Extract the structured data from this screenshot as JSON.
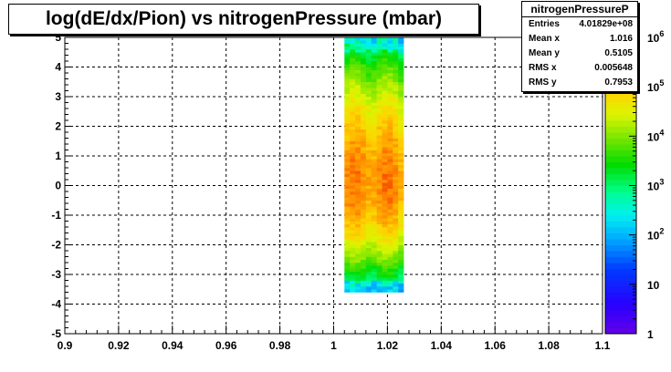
{
  "chart_data": {
    "type": "heatmap",
    "title": "log(dE/dx/Pion) vs nitrogenPressure (mbar)",
    "xlabel": "",
    "ylabel": "",
    "xlim": [
      0.9,
      1.1
    ],
    "ylim": [
      -5,
      5
    ],
    "x_ticks": [
      "0.9",
      "0.92",
      "0.94",
      "0.96",
      "0.98",
      "1",
      "1.02",
      "1.04",
      "1.06",
      "1.08",
      "1.1"
    ],
    "y_ticks": [
      "-5",
      "-4",
      "-3",
      "-2",
      "-1",
      "0",
      "1",
      "2",
      "3",
      "4",
      "5"
    ],
    "grid": true,
    "z_scale": "log",
    "z_range": [
      1,
      1000000
    ],
    "z_ticks": [
      {
        "value": 1,
        "label": "1",
        "exp": ""
      },
      {
        "value": 10,
        "label": "10",
        "exp": ""
      },
      {
        "value": 100,
        "label": "10",
        "exp": "2"
      },
      {
        "value": 1000,
        "label": "10",
        "exp": "3"
      },
      {
        "value": 10000,
        "label": "10",
        "exp": "4"
      },
      {
        "value": 100000,
        "label": "10",
        "exp": "5"
      },
      {
        "value": 1000000,
        "label": "10",
        "exp": "6"
      }
    ],
    "distribution": {
      "x_peaks": [
        1.008,
        1.02
      ],
      "x_extent": [
        1.004,
        1.026
      ],
      "y_extent": [
        -3.6,
        5.0
      ],
      "peak_counts": 300000
    },
    "stats": {
      "name": "nitrogenPressureP",
      "rows": [
        {
          "label": "Entries",
          "value": "4.01829e+08"
        },
        {
          "label": "Mean x",
          "value": "1.016"
        },
        {
          "label": "Mean y",
          "value": "0.5105"
        },
        {
          "label": "RMS x",
          "value": "0.005648"
        },
        {
          "label": "RMS y",
          "value": "0.7953"
        }
      ]
    }
  }
}
